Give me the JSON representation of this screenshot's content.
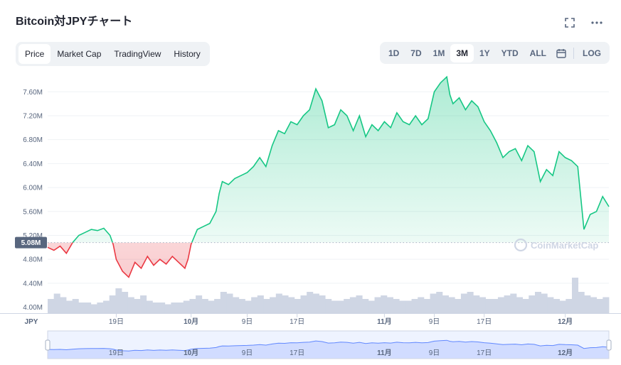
{
  "title": "Bitcoin対JPYチャート",
  "tabs": [
    {
      "label": "Price",
      "active": true
    },
    {
      "label": "Market Cap",
      "active": false
    },
    {
      "label": "TradingView",
      "active": false
    },
    {
      "label": "History",
      "active": false
    }
  ],
  "ranges": [
    {
      "label": "1D",
      "active": false
    },
    {
      "label": "7D",
      "active": false
    },
    {
      "label": "1M",
      "active": false
    },
    {
      "label": "3M",
      "active": true
    },
    {
      "label": "1Y",
      "active": false
    },
    {
      "label": "YTD",
      "active": false
    },
    {
      "label": "ALL",
      "active": false
    }
  ],
  "log_label": "LOG",
  "icons": {
    "fullscreen": "expand-icon",
    "more": "more-icon",
    "calendar": "calendar-icon"
  },
  "watermark": "CoinMarketCap",
  "currency_label": "JPY",
  "current_price_label": "5.08M",
  "colors": {
    "up": "#16c784",
    "down": "#ea3943",
    "volume": "#cfd6e4",
    "nav": "#6188ff"
  },
  "chart_data": {
    "type": "line",
    "title": "Bitcoin対JPYチャート",
    "ylabel": "",
    "xlabel": "",
    "yunit": "JPY",
    "ylim": [
      3.9,
      7.9
    ],
    "yticks": [
      4.0,
      4.4,
      4.8,
      5.2,
      5.6,
      6.0,
      6.4,
      6.8,
      7.2,
      7.6
    ],
    "ytick_labels": [
      "4.00M",
      "4.40M",
      "4.80M",
      "5.20M",
      "5.60M",
      "6.00M",
      "6.40M",
      "6.80M",
      "7.20M",
      "7.60M"
    ],
    "xticks": [
      {
        "label": "19日",
        "t": 11
      },
      {
        "label": "10月",
        "t": 23,
        "bold": true
      },
      {
        "label": "9日",
        "t": 32
      },
      {
        "label": "17日",
        "t": 40
      },
      {
        "label": "11月",
        "t": 54,
        "bold": true
      },
      {
        "label": "9日",
        "t": 62
      },
      {
        "label": "17日",
        "t": 70
      },
      {
        "label": "12月",
        "t": 83,
        "bold": true
      }
    ],
    "t_range": [
      0,
      90
    ],
    "baseline": 5.08,
    "series": [
      {
        "values": [
          [
            0,
            5.0
          ],
          [
            1,
            4.95
          ],
          [
            2,
            5.02
          ],
          [
            3,
            4.9
          ],
          [
            4,
            5.08
          ],
          [
            5,
            5.2
          ],
          [
            6,
            5.25
          ],
          [
            7,
            5.3
          ],
          [
            8,
            5.28
          ],
          [
            9,
            5.32
          ],
          [
            10,
            5.2
          ],
          [
            10.5,
            5.05
          ],
          [
            11,
            4.8
          ],
          [
            12,
            4.6
          ],
          [
            13,
            4.5
          ],
          [
            14,
            4.75
          ],
          [
            15,
            4.65
          ],
          [
            16,
            4.85
          ],
          [
            17,
            4.7
          ],
          [
            18,
            4.8
          ],
          [
            19,
            4.72
          ],
          [
            20,
            4.85
          ],
          [
            21,
            4.75
          ],
          [
            22,
            4.65
          ],
          [
            22.5,
            4.8
          ],
          [
            23,
            5.05
          ],
          [
            24,
            5.3
          ],
          [
            25,
            5.35
          ],
          [
            26,
            5.4
          ],
          [
            27,
            5.6
          ],
          [
            27.5,
            5.9
          ],
          [
            28,
            6.1
          ],
          [
            29,
            6.05
          ],
          [
            30,
            6.15
          ],
          [
            31,
            6.2
          ],
          [
            32,
            6.25
          ],
          [
            33,
            6.35
          ],
          [
            34,
            6.5
          ],
          [
            35,
            6.35
          ],
          [
            36,
            6.7
          ],
          [
            37,
            6.95
          ],
          [
            38,
            6.9
          ],
          [
            39,
            7.1
          ],
          [
            40,
            7.05
          ],
          [
            41,
            7.2
          ],
          [
            42,
            7.3
          ],
          [
            43,
            7.65
          ],
          [
            44,
            7.45
          ],
          [
            45,
            7.0
          ],
          [
            46,
            7.05
          ],
          [
            47,
            7.3
          ],
          [
            48,
            7.2
          ],
          [
            49,
            6.95
          ],
          [
            50,
            7.2
          ],
          [
            51,
            6.85
          ],
          [
            52,
            7.05
          ],
          [
            53,
            6.95
          ],
          [
            54,
            7.1
          ],
          [
            55,
            7.0
          ],
          [
            56,
            7.25
          ],
          [
            57,
            7.1
          ],
          [
            58,
            7.05
          ],
          [
            59,
            7.2
          ],
          [
            60,
            7.05
          ],
          [
            61,
            7.15
          ],
          [
            62,
            7.6
          ],
          [
            63,
            7.75
          ],
          [
            64,
            7.85
          ],
          [
            64.5,
            7.55
          ],
          [
            65,
            7.4
          ],
          [
            66,
            7.5
          ],
          [
            67,
            7.3
          ],
          [
            68,
            7.45
          ],
          [
            69,
            7.35
          ],
          [
            70,
            7.1
          ],
          [
            71,
            6.95
          ],
          [
            72,
            6.75
          ],
          [
            73,
            6.5
          ],
          [
            74,
            6.6
          ],
          [
            75,
            6.65
          ],
          [
            76,
            6.45
          ],
          [
            77,
            6.7
          ],
          [
            78,
            6.6
          ],
          [
            79,
            6.1
          ],
          [
            80,
            6.3
          ],
          [
            81,
            6.2
          ],
          [
            82,
            6.6
          ],
          [
            83,
            6.5
          ],
          [
            84,
            6.45
          ],
          [
            85,
            6.35
          ],
          [
            86,
            5.3
          ],
          [
            87,
            5.55
          ],
          [
            88,
            5.6
          ],
          [
            89,
            5.85
          ],
          [
            90,
            5.68
          ]
        ]
      }
    ],
    "volume": [
      0.4,
      0.55,
      0.45,
      0.35,
      0.4,
      0.3,
      0.3,
      0.25,
      0.3,
      0.35,
      0.5,
      0.7,
      0.6,
      0.45,
      0.4,
      0.5,
      0.35,
      0.3,
      0.3,
      0.25,
      0.3,
      0.3,
      0.35,
      0.4,
      0.5,
      0.4,
      0.35,
      0.4,
      0.6,
      0.55,
      0.45,
      0.4,
      0.35,
      0.45,
      0.5,
      0.4,
      0.45,
      0.55,
      0.5,
      0.45,
      0.4,
      0.5,
      0.6,
      0.55,
      0.5,
      0.4,
      0.35,
      0.35,
      0.4,
      0.45,
      0.5,
      0.4,
      0.35,
      0.45,
      0.5,
      0.45,
      0.4,
      0.35,
      0.35,
      0.4,
      0.45,
      0.4,
      0.55,
      0.6,
      0.5,
      0.45,
      0.4,
      0.55,
      0.6,
      0.5,
      0.45,
      0.4,
      0.4,
      0.45,
      0.5,
      0.55,
      0.45,
      0.4,
      0.5,
      0.6,
      0.55,
      0.45,
      0.4,
      0.35,
      0.4,
      1.0,
      0.6,
      0.5,
      0.45,
      0.4,
      0.45
    ]
  }
}
